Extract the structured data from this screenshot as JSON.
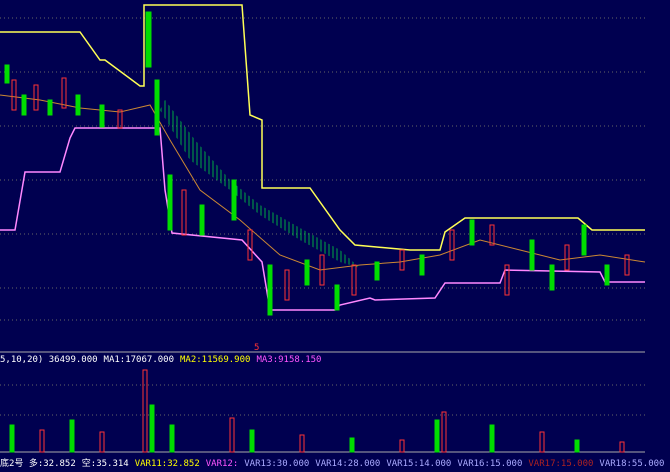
{
  "screen": {
    "indicator_line": [
      {
        "text": "5,10,20) 36499.000",
        "color": "#ffffff"
      },
      {
        "text": "MA1:17067.000",
        "color": "#ffffff"
      },
      {
        "text": "MA2:11569.900",
        "color": "#ffff00"
      },
      {
        "text": "MA3:9158.150",
        "color": "#ff55ff"
      }
    ],
    "marker": "5",
    "status_line": [
      {
        "text": "底2号 多:32.852",
        "color": "#ffffff"
      },
      {
        "text": "空:35.314",
        "color": "#ffffff"
      },
      {
        "text": "VAR11:32.852",
        "color": "#ffff00"
      },
      {
        "text": "VAR12:",
        "color": "#ff55ff"
      },
      {
        "text": "VAR13:30.000",
        "color": "#aaaaff"
      },
      {
        "text": "VAR14:28.000",
        "color": "#aaaaff"
      },
      {
        "text": "VAR15:14.000",
        "color": "#aaaaff"
      },
      {
        "text": "VAR16:15.000",
        "color": "#aaaaff"
      },
      {
        "text": "VAR17:15.000",
        "color": "#aa2222"
      },
      {
        "text": "VAR18:55.000",
        "color": "#aaaaff"
      }
    ]
  }
}
